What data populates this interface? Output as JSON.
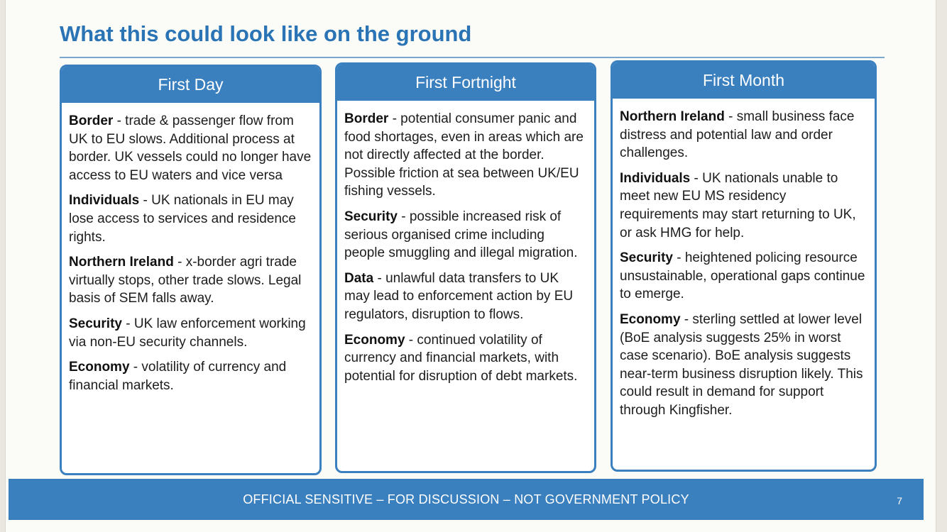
{
  "title": "What this could look like on the ground",
  "columns": [
    {
      "header": "First Day",
      "items": [
        {
          "key": "Border",
          "text": " - trade & passenger flow from UK to EU slows. Additional process at border. UK vessels could no longer have access to EU waters and vice versa"
        },
        {
          "key": "Individuals",
          "text": " - UK nationals in EU may lose access to services and residence rights."
        },
        {
          "key": "Northern Ireland",
          "text": " - x-border agri trade virtually stops, other trade slows. Legal basis of SEM falls away."
        },
        {
          "key": "Security",
          "text": " - UK law enforcement working via non-EU security channels."
        },
        {
          "key": "Economy",
          "text": " - volatility of currency and financial markets."
        }
      ]
    },
    {
      "header": "First Fortnight",
      "items": [
        {
          "key": "Border",
          "text": " - potential consumer panic and food shortages, even in areas which are not directly affected at the border. Possible friction at sea between UK/EU fishing vessels."
        },
        {
          "key": "Security",
          "text": " - possible increased risk of serious organised crime including people smuggling and illegal migration."
        },
        {
          "key": "Data",
          "text": " - unlawful data transfers to UK may lead to enforcement action by EU regulators, disruption to flows."
        },
        {
          "key": "Economy",
          "text": " - continued volatility of currency and financial markets, with potential for disruption of debt markets."
        }
      ]
    },
    {
      "header": "First Month",
      "items": [
        {
          "key": "Northern Ireland",
          "text": " - small business face distress and potential law and order challenges."
        },
        {
          "key": "Individuals",
          "text": " - UK nationals unable to meet new EU MS residency requirements may start returning to UK, or ask HMG for help."
        },
        {
          "key": "Security",
          "text": " - heightened policing resource unsustainable, operational gaps continue to emerge."
        },
        {
          "key": "Economy",
          "text": " - sterling settled at lower level (BoE analysis suggests 25% in worst case scenario). BoE analysis suggests near-term business disruption likely. This could result in demand for support through Kingfisher."
        }
      ]
    }
  ],
  "footer": {
    "text": "OFFICIAL SENSITIVE –  FOR DISCUSSION – NOT GOVERNMENT POLICY",
    "page_number": "7"
  },
  "colors": {
    "title": "#2a74b5",
    "accent": "#3a7fbe"
  }
}
